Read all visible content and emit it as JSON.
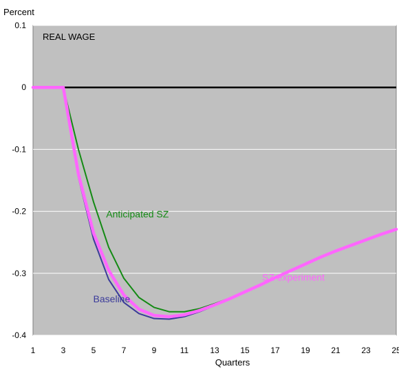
{
  "chart_data": {
    "type": "line",
    "title": "REAL WAGE",
    "ylabel": "Percent",
    "xlabel": "Quarters",
    "xlim": [
      1,
      25
    ],
    "ylim": [
      -0.4,
      0.1
    ],
    "x_ticks": [
      1,
      3,
      5,
      7,
      9,
      11,
      13,
      15,
      17,
      19,
      21,
      23,
      25
    ],
    "x_tick_labels": [
      "1",
      "3",
      "5",
      "7",
      "9",
      "11",
      "13",
      "15",
      "17",
      "19",
      "21",
      "23",
      "25"
    ],
    "y_ticks": [
      0.1,
      0,
      -0.1,
      -0.2,
      -0.3,
      -0.4
    ],
    "y_tick_labels": [
      "0.1",
      "0",
      "-0.1",
      "-0.2",
      "-0.3",
      "-0.4"
    ],
    "grid": true,
    "background_color": "#c0c0c0",
    "zero_line": 0,
    "x": [
      1,
      2,
      3,
      4,
      5,
      6,
      7,
      8,
      9,
      10,
      11,
      12,
      13,
      14,
      15,
      16,
      17,
      18,
      19,
      20,
      21,
      22,
      23,
      24,
      25
    ],
    "series": [
      {
        "name": "Baseline",
        "color": "#3a3a9a",
        "values": [
          0,
          0,
          0,
          -0.145,
          -0.245,
          -0.31,
          -0.347,
          -0.365,
          -0.373,
          -0.374,
          -0.37,
          -0.362,
          -0.352,
          -0.341,
          -0.33,
          -0.319,
          -0.307,
          -0.296,
          -0.285,
          -0.274,
          -0.264,
          -0.255,
          -0.246,
          -0.237,
          -0.229
        ]
      },
      {
        "name": "Anticipated SZ",
        "color": "#138a13",
        "values": [
          0,
          0,
          0,
          -0.1,
          -0.185,
          -0.258,
          -0.308,
          -0.339,
          -0.355,
          -0.362,
          -0.362,
          -0.357,
          -0.349,
          -0.34,
          -0.33,
          -0.319,
          -0.307,
          -0.296,
          -0.285,
          -0.274,
          -0.264,
          -0.255,
          -0.246,
          -0.237,
          -0.229
        ]
      },
      {
        "name": "SZ experiment",
        "color": "#ff66ff",
        "values": [
          0,
          0,
          0,
          -0.14,
          -0.235,
          -0.295,
          -0.335,
          -0.358,
          -0.368,
          -0.37,
          -0.367,
          -0.36,
          -0.351,
          -0.341,
          -0.33,
          -0.319,
          -0.307,
          -0.296,
          -0.285,
          -0.274,
          -0.264,
          -0.255,
          -0.246,
          -0.237,
          -0.229
        ]
      }
    ],
    "annotations": [
      {
        "text": "Anticipated SZ",
        "series": "Anticipated SZ",
        "x": 7.9,
        "y": -0.21
      },
      {
        "text": "SZ experiment",
        "series": "SZ experiment",
        "x": 18.2,
        "y": -0.312
      },
      {
        "text": "Baseline",
        "series": "Baseline",
        "x": 6.2,
        "y": -0.347
      }
    ]
  }
}
